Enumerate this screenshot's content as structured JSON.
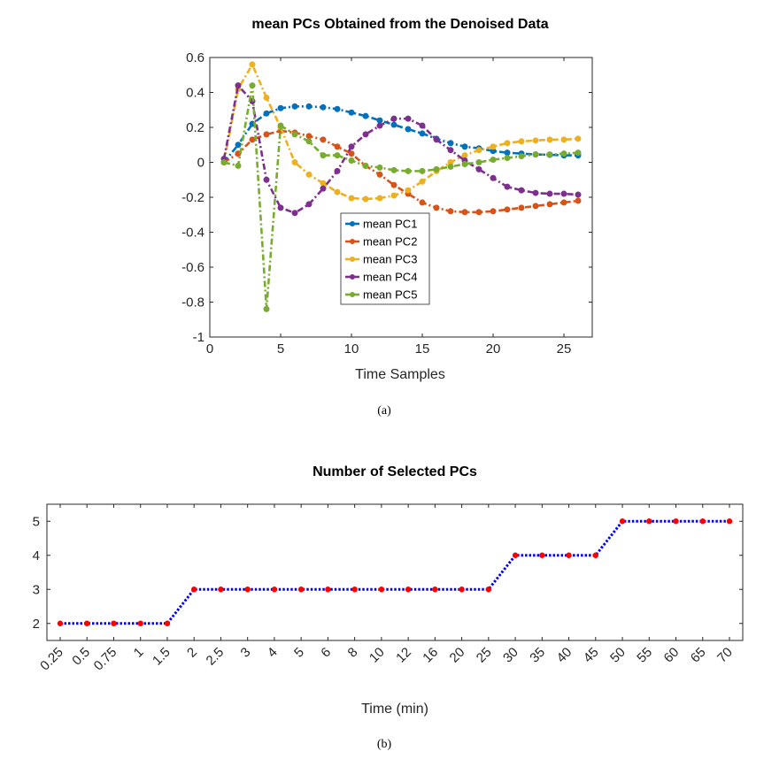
{
  "chart_data": [
    {
      "type": "line",
      "title": "mean PCs Obtained from the Denoised Data",
      "xlabel": "Time Samples",
      "ylabel": "",
      "xlim": [
        0,
        27
      ],
      "ylim": [
        -1,
        0.6
      ],
      "xticks": [
        0,
        5,
        10,
        15,
        20,
        25
      ],
      "yticks": [
        0.6,
        0.4,
        0.2,
        0,
        -0.2,
        -0.4,
        -0.6,
        -0.8,
        -1
      ],
      "legend_position": "center",
      "caption": "(a)",
      "series": [
        {
          "name": "mean PC1",
          "color": "#0072BD",
          "x": [
            1,
            2,
            3,
            4,
            5,
            6,
            7,
            8,
            9,
            10,
            11,
            12,
            13,
            14,
            15,
            16,
            17,
            18,
            19,
            20,
            21,
            22,
            23,
            24,
            25,
            26
          ],
          "values": [
            0.0,
            0.1,
            0.22,
            0.28,
            0.31,
            0.32,
            0.32,
            0.315,
            0.305,
            0.285,
            0.265,
            0.24,
            0.215,
            0.19,
            0.165,
            0.135,
            0.11,
            0.09,
            0.08,
            0.065,
            0.055,
            0.05,
            0.045,
            0.043,
            0.04,
            0.04
          ]
        },
        {
          "name": "mean PC2",
          "color": "#D95319",
          "x": [
            1,
            2,
            3,
            4,
            5,
            6,
            7,
            8,
            9,
            10,
            11,
            12,
            13,
            14,
            15,
            16,
            17,
            18,
            19,
            20,
            21,
            22,
            23,
            24,
            25,
            26
          ],
          "values": [
            0.0,
            0.05,
            0.13,
            0.16,
            0.18,
            0.17,
            0.15,
            0.13,
            0.09,
            0.05,
            -0.02,
            -0.07,
            -0.13,
            -0.18,
            -0.23,
            -0.26,
            -0.28,
            -0.285,
            -0.285,
            -0.28,
            -0.27,
            -0.26,
            -0.25,
            -0.24,
            -0.23,
            -0.22
          ]
        },
        {
          "name": "mean PC3",
          "color": "#EDB120",
          "x": [
            1,
            2,
            3,
            4,
            5,
            6,
            7,
            8,
            9,
            10,
            11,
            12,
            13,
            14,
            15,
            16,
            17,
            18,
            19,
            20,
            21,
            22,
            23,
            24,
            25,
            26
          ],
          "values": [
            0.0,
            0.42,
            0.56,
            0.37,
            0.2,
            0.0,
            -0.07,
            -0.12,
            -0.17,
            -0.205,
            -0.21,
            -0.205,
            -0.19,
            -0.16,
            -0.11,
            -0.05,
            0.0,
            0.04,
            0.07,
            0.09,
            0.11,
            0.12,
            0.125,
            0.13,
            0.13,
            0.135
          ]
        },
        {
          "name": "mean PC4",
          "color": "#7E2F8E",
          "x": [
            1,
            2,
            3,
            4,
            5,
            6,
            7,
            8,
            9,
            10,
            11,
            12,
            13,
            14,
            15,
            16,
            17,
            18,
            19,
            20,
            21,
            22,
            23,
            24,
            25,
            26
          ],
          "values": [
            0.02,
            0.44,
            0.35,
            -0.1,
            -0.26,
            -0.29,
            -0.24,
            -0.15,
            -0.05,
            0.09,
            0.16,
            0.21,
            0.25,
            0.25,
            0.21,
            0.13,
            0.07,
            0.01,
            -0.04,
            -0.09,
            -0.14,
            -0.16,
            -0.175,
            -0.18,
            -0.18,
            -0.185
          ]
        },
        {
          "name": "mean PC5",
          "color": "#77AC30",
          "x": [
            1,
            2,
            3,
            4,
            5,
            6,
            7,
            8,
            9,
            10,
            11,
            12,
            13,
            14,
            15,
            16,
            17,
            18,
            19,
            20,
            21,
            22,
            23,
            24,
            25,
            26
          ],
          "values": [
            0.0,
            -0.02,
            0.44,
            -0.84,
            0.21,
            0.16,
            0.12,
            0.04,
            0.04,
            0.01,
            -0.02,
            -0.03,
            -0.045,
            -0.05,
            -0.05,
            -0.04,
            -0.025,
            -0.01,
            0.0,
            0.015,
            0.025,
            0.035,
            0.045,
            0.045,
            0.05,
            0.055
          ]
        }
      ]
    },
    {
      "type": "line",
      "title": "Number of Selected PCs",
      "xlabel": "Time (min)",
      "ylabel": "",
      "categories": [
        "0.25",
        "0.5",
        "0.75",
        "1",
        "1.5",
        "2",
        "2.5",
        "3",
        "4",
        "5",
        "6",
        "8",
        "10",
        "12",
        "16",
        "20",
        "25",
        "30",
        "35",
        "40",
        "45",
        "50",
        "55",
        "60",
        "65",
        "70"
      ],
      "ylim": [
        1.5,
        5.5
      ],
      "yticks": [
        5,
        4,
        3,
        2
      ],
      "caption": "(b)",
      "series": [
        {
          "name": "Number of Selected PCs",
          "line_color": "#0000FF",
          "marker_color": "#FF0000",
          "values": [
            2,
            2,
            2,
            2,
            2,
            3,
            3,
            3,
            3,
            3,
            3,
            3,
            3,
            3,
            3,
            3,
            3,
            4,
            4,
            4,
            4,
            5,
            5,
            5,
            5,
            5
          ]
        }
      ]
    }
  ]
}
